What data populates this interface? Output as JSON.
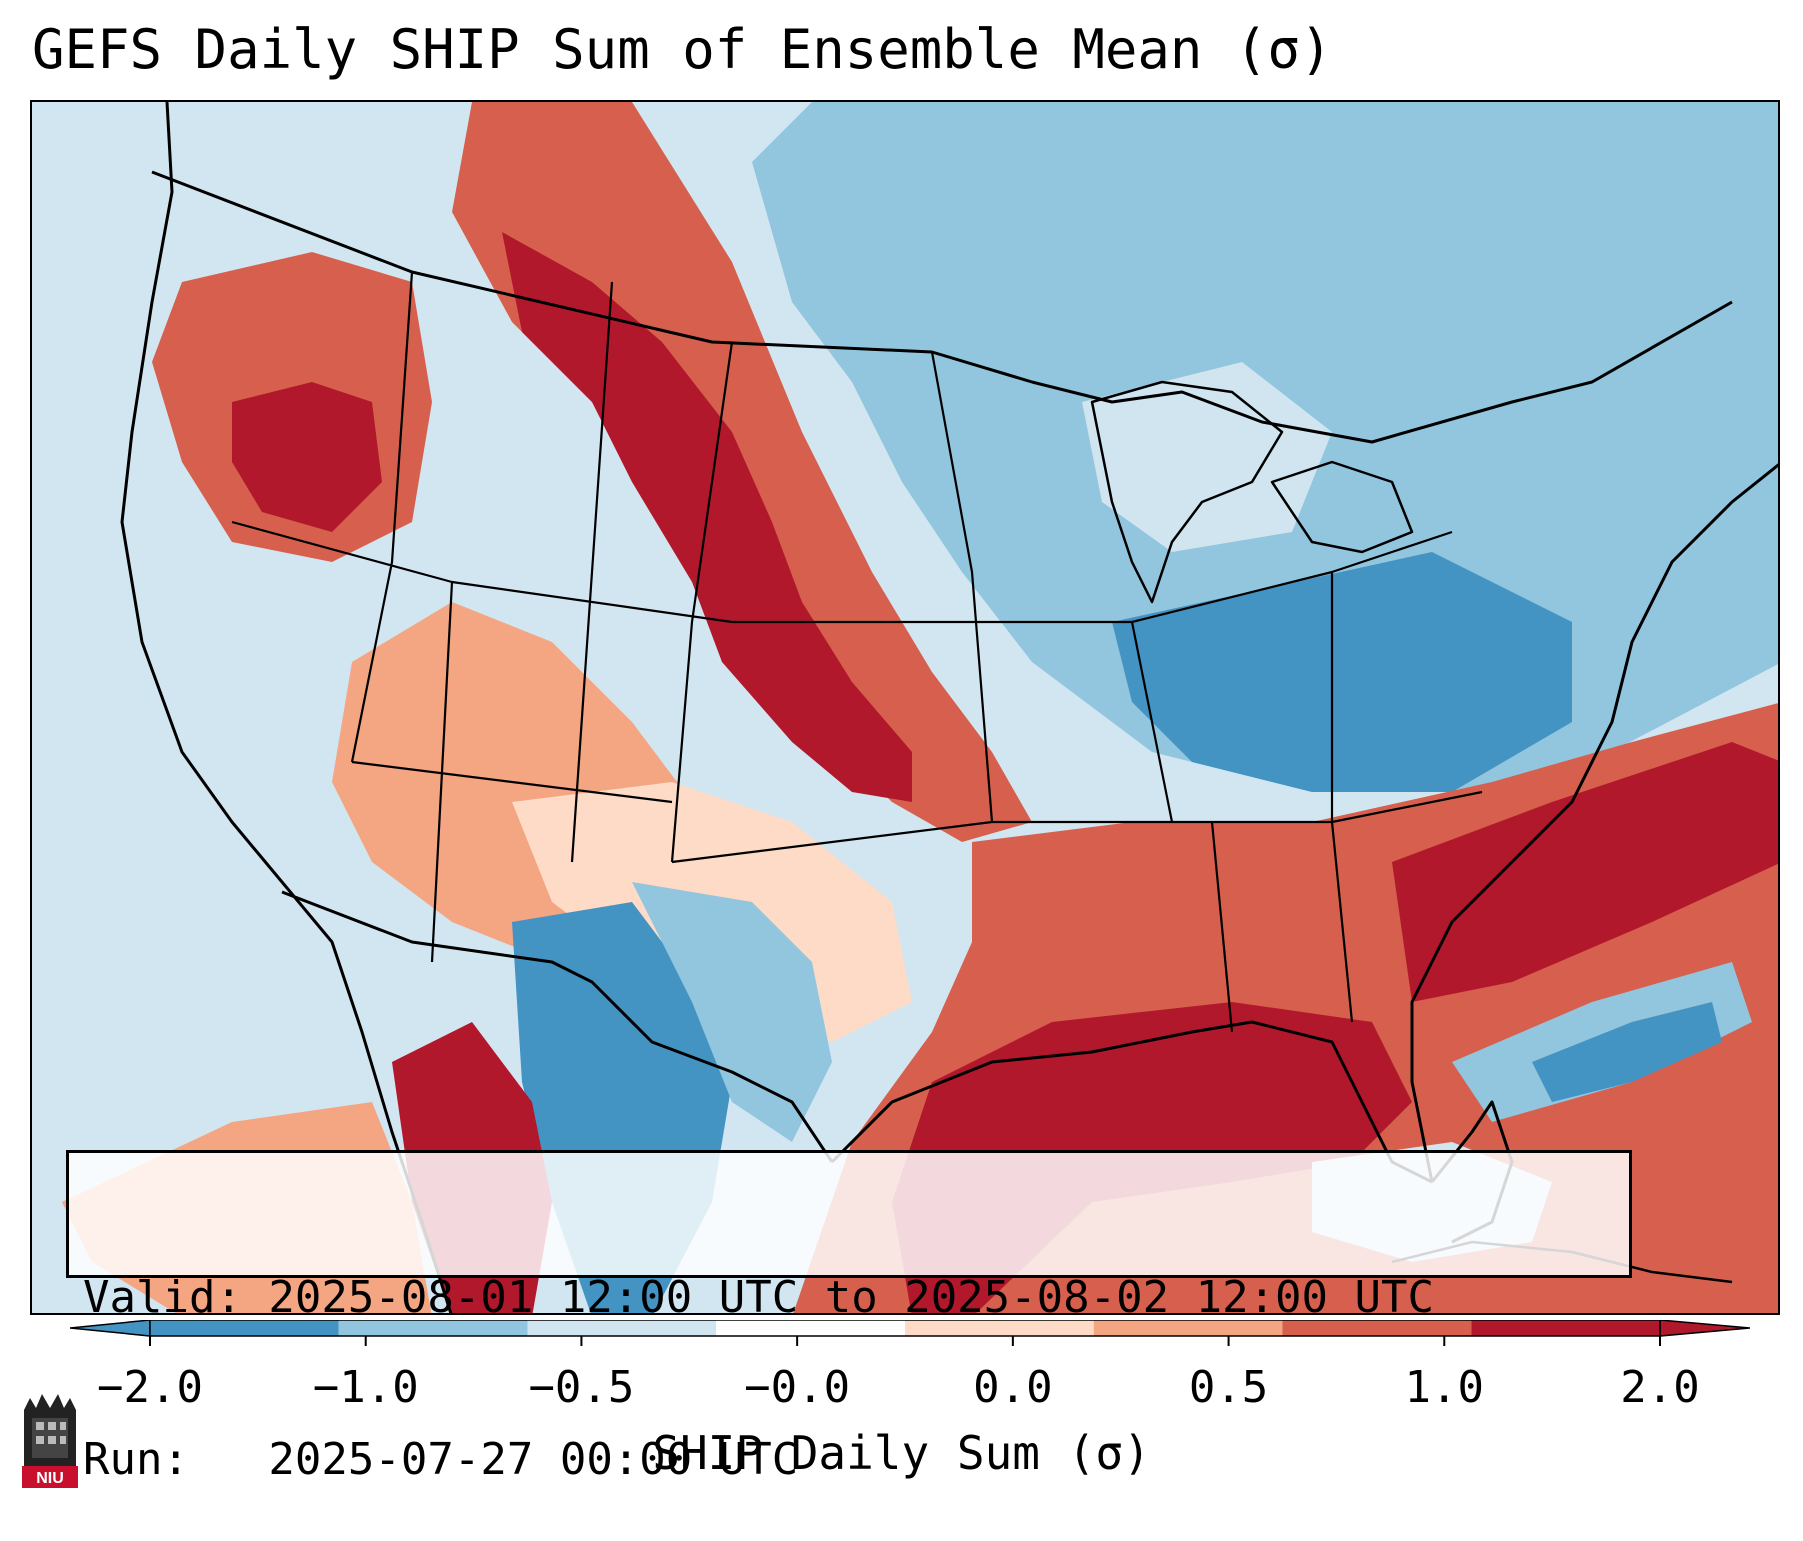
{
  "title": "GEFS Daily SHIP Sum of Ensemble Mean (σ)",
  "info": {
    "valid_line": "Valid: 2025-08-01 12:00 UTC to 2025-08-02 12:00 UTC",
    "run_line": "Run:   2025-07-27 00:00 UTC"
  },
  "colorbar": {
    "label": "SHIP Daily Sum (σ)",
    "ticks": [
      "−2.0",
      "−1.0",
      "−0.5",
      "−0.0",
      "0.0",
      "0.5",
      "1.0",
      "2.0"
    ],
    "colors": [
      "#4393c3",
      "#92c5de",
      "#d1e5f0",
      "#ffffff",
      "#fddbc7",
      "#f4a582",
      "#d6604d",
      "#b2182b"
    ],
    "extend": "both"
  },
  "legend_colors": {
    "very_low": "#4393c3",
    "low": "#92c5de",
    "slightly_low": "#d1e5f0",
    "slightly_high": "#fddbc7",
    "moderate": "#f4a582",
    "high": "#d6604d",
    "very_high": "#b2182b"
  },
  "logo": {
    "text": "NIU",
    "icon": "niu-logo-icon"
  }
}
